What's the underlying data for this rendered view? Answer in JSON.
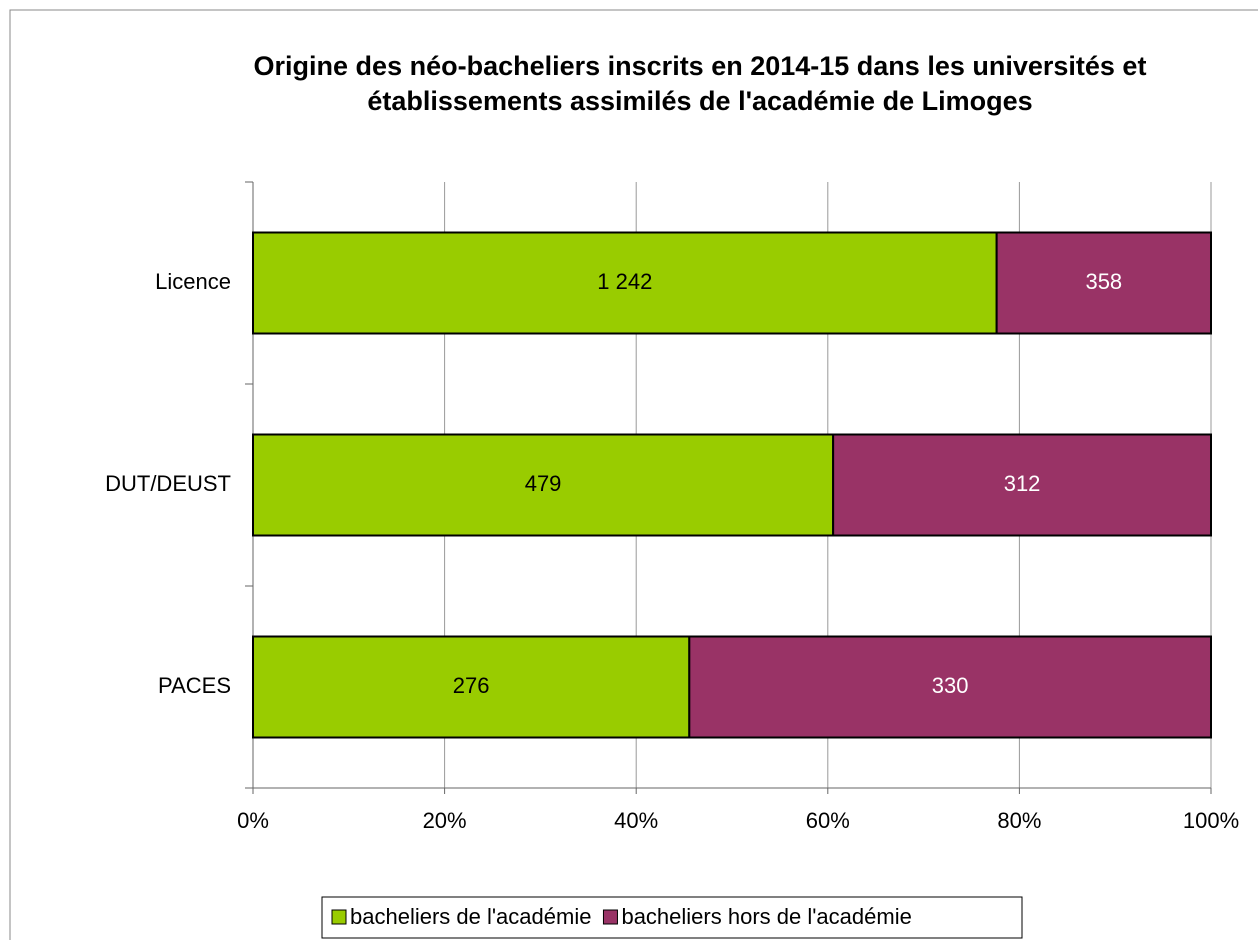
{
  "chart_data": {
    "type": "bar",
    "orientation": "horizontal",
    "stacking": "percent",
    "title": [
      "Origine des néo-bacheliers inscrits en 2014-15 dans les universités et",
      "établissements assimilés de l'académie de Limoges"
    ],
    "categories": [
      "Licence",
      "DUT/DEUST",
      "PACES"
    ],
    "series": [
      {
        "name": "bacheliers de l'académie",
        "color": "#99cc00",
        "label_color": "#000000",
        "values": [
          1242,
          479,
          276
        ],
        "value_labels": [
          "1 242",
          "479",
          "276"
        ]
      },
      {
        "name": "bacheliers hors de l'académie",
        "color": "#993366",
        "label_color": "#ffffff",
        "values": [
          358,
          312,
          330
        ]
      }
    ],
    "xlim": [
      0,
      100
    ],
    "xticks": [
      {
        "value": 0,
        "label": "0%"
      },
      {
        "value": 20,
        "label": "20%"
      },
      {
        "value": 40,
        "label": "40%"
      },
      {
        "value": 60,
        "label": "60%"
      },
      {
        "value": 80,
        "label": "80%"
      },
      {
        "value": 100,
        "label": "100%"
      }
    ],
    "grid": true,
    "legend": "bottom"
  }
}
